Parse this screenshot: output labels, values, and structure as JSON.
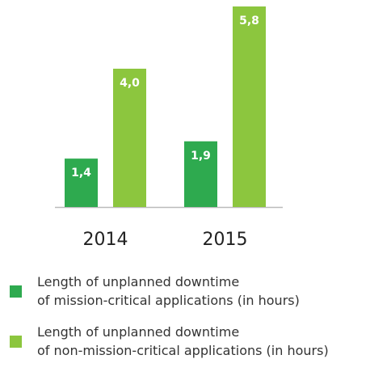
{
  "chart_data": {
    "type": "bar",
    "categories": [
      "2014",
      "2015"
    ],
    "series": [
      {
        "name": "Length of unplanned downtime\nof mission-critical applications (in hours)",
        "color": "#2eaa4f",
        "values": [
          1.4,
          1.9
        ],
        "value_labels": [
          "1,4",
          "1,9"
        ]
      },
      {
        "name": "Length of unplanned downtime\nof non-mission-critical applications (in hours)",
        "color": "#8cc63e",
        "values": [
          4.0,
          5.8
        ],
        "value_labels": [
          "4,0",
          "5,8"
        ]
      }
    ]
  }
}
